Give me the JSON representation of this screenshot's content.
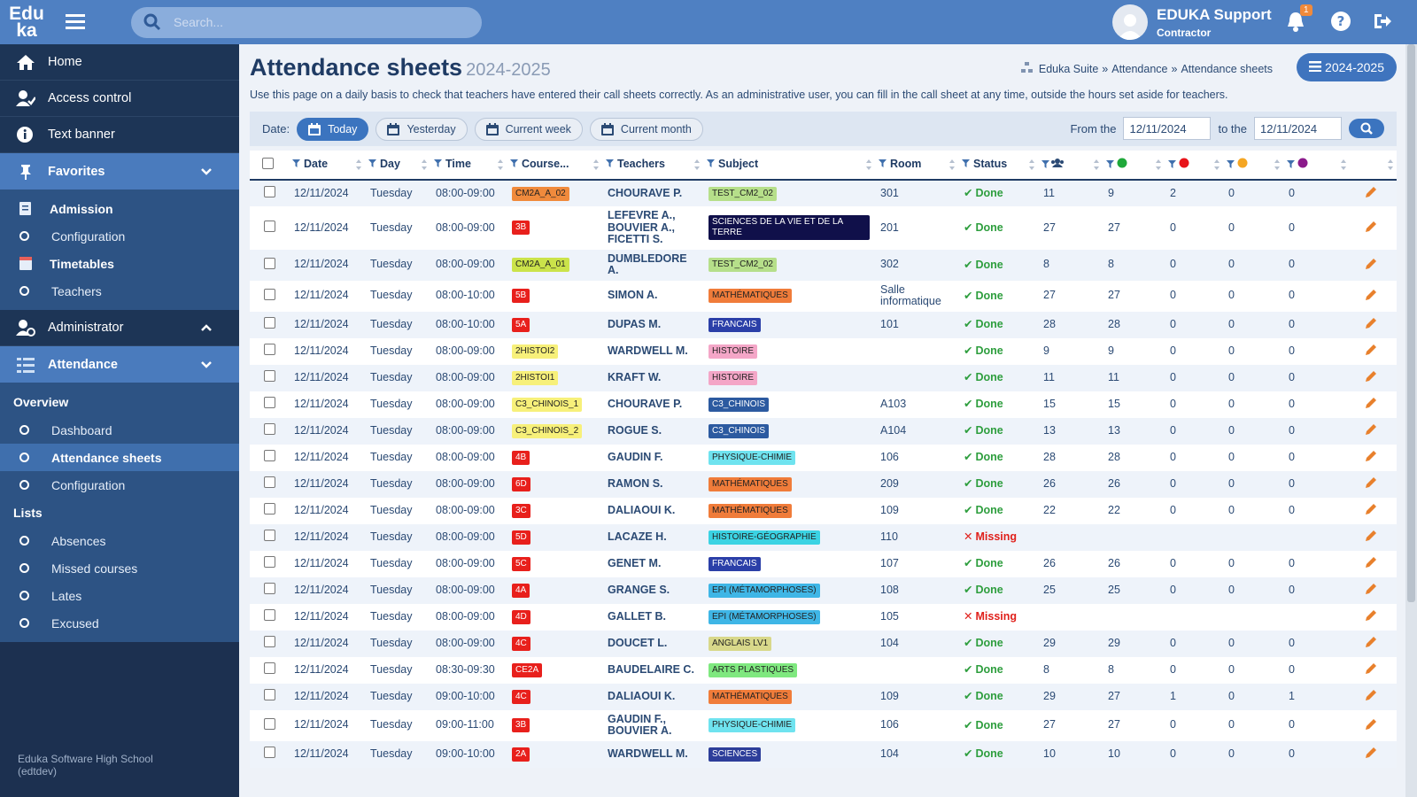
{
  "header": {
    "logo_top": "Edu",
    "logo_bottom": "ka",
    "search_placeholder": "Search...",
    "user_name": "EDUKA Support",
    "user_role": "Contractor",
    "notification_count": 1
  },
  "sidebar": {
    "home": "Home",
    "access_control": "Access control",
    "text_banner": "Text banner",
    "favorites": "Favorites",
    "admission": "Admission",
    "admission_configuration": "Configuration",
    "timetables": "Timetables",
    "teachers": "Teachers",
    "administrator": "Administrator",
    "attendance": "Attendance",
    "overview": "Overview",
    "dashboard": "Dashboard",
    "attendance_sheets": "Attendance sheets",
    "attendance_configuration": "Configuration",
    "lists": "Lists",
    "absences": "Absences",
    "missed_courses": "Missed courses",
    "lates": "Lates",
    "excused": "Excused",
    "footer": "Eduka Software High School (edtdev)"
  },
  "page": {
    "title": "Attendance sheets",
    "year": "2024-2025",
    "breadcrumb": [
      "Eduka Suite",
      "Attendance",
      "Attendance sheets"
    ],
    "breadcrumb_separator": "»",
    "year_button": "2024-2025",
    "description": "Use this page on a daily basis to check that teachers have entered their call sheets correctly. As an administrative user, you can fill in the call sheet at any time, outside the hours set aside for teachers."
  },
  "filters": {
    "date_label": "Date:",
    "buttons": [
      "Today",
      "Yesterday",
      "Current week",
      "Current month"
    ],
    "active_button": 0,
    "from_label": "From the",
    "from_value": "12/11/2024",
    "to_label": "to the",
    "to_value": "12/11/2024"
  },
  "table": {
    "columns": [
      "Date",
      "Day",
      "Time",
      "Course...",
      "Teachers",
      "Subject",
      "Room",
      "Status"
    ],
    "dot_colors": [
      "#1fa83a",
      "#e8141a",
      "#f5a623",
      "#8b1a8b"
    ],
    "rows": [
      {
        "date": "12/11/2024",
        "day": "Tuesday",
        "time": "08:00-09:00",
        "course": "CM2A_A_02",
        "course_color": "#f08a3c",
        "teachers": "CHOURAVE P.",
        "subject": "TEST_CM2_02",
        "subject_color": "#b6df8a",
        "room": "301",
        "status": "Done",
        "status_icon": "✔",
        "status_color": "#2e9e3e",
        "total": 11,
        "present": 9,
        "absent": 2,
        "late": 0,
        "excused": 0
      },
      {
        "date": "12/11/2024",
        "day": "Tuesday",
        "time": "08:00-09:00",
        "course": "3B",
        "course_color": "#e8201c",
        "teachers": "LEFEVRE A., BOUVIER A., FICETTI S.",
        "subject": "SCIENCES DE LA VIE ET DE LA TERRE",
        "subject_color": "#10104a",
        "room": "201",
        "status": "Done",
        "status_icon": "✔",
        "status_color": "#2e9e3e",
        "total": 27,
        "present": 27,
        "absent": 0,
        "late": 0,
        "excused": 0
      },
      {
        "date": "12/11/2024",
        "day": "Tuesday",
        "time": "08:00-09:00",
        "course": "CM2A_A_01",
        "course_color": "#cbe34a",
        "teachers": "DUMBLEDORE A.",
        "subject": "TEST_CM2_02",
        "subject_color": "#b6df8a",
        "room": "302",
        "status": "Done",
        "status_icon": "✔",
        "status_color": "#2e9e3e",
        "total": 8,
        "present": 8,
        "absent": 0,
        "late": 0,
        "excused": 0
      },
      {
        "date": "12/11/2024",
        "day": "Tuesday",
        "time": "08:00-10:00",
        "course": "5B",
        "course_color": "#e8201c",
        "teachers": "SIMON A.",
        "subject": "MATHÉMATIQUES",
        "subject_color": "#f07c3a",
        "room": "Salle informatique",
        "status": "Done",
        "status_icon": "✔",
        "status_color": "#2e9e3e",
        "total": 27,
        "present": 27,
        "absent": 0,
        "late": 0,
        "excused": 0
      },
      {
        "date": "12/11/2024",
        "day": "Tuesday",
        "time": "08:00-10:00",
        "course": "5A",
        "course_color": "#e8201c",
        "teachers": "DUPAS M.",
        "subject": "FRANCAIS",
        "subject_color": "#2b3fa8",
        "room": "101",
        "status": "Done",
        "status_icon": "✔",
        "status_color": "#2e9e3e",
        "total": 28,
        "present": 28,
        "absent": 0,
        "late": 0,
        "excused": 0
      },
      {
        "date": "12/11/2024",
        "day": "Tuesday",
        "time": "08:00-09:00",
        "course": "2HISTOI2",
        "course_color": "#f7f07a",
        "teachers": "WARDWELL M.",
        "subject": "HISTOIRE",
        "subject_color": "#f4a6c7",
        "room": null,
        "status": "Done",
        "status_icon": "✔",
        "status_color": "#2e9e3e",
        "total": 9,
        "present": 9,
        "absent": 0,
        "late": 0,
        "excused": 0
      },
      {
        "date": "12/11/2024",
        "day": "Tuesday",
        "time": "08:00-09:00",
        "course": "2HISTOI1",
        "course_color": "#f7f07a",
        "teachers": "KRAFT W.",
        "subject": "HISTOIRE",
        "subject_color": "#f4a6c7",
        "room": null,
        "status": "Done",
        "status_icon": "✔",
        "status_color": "#2e9e3e",
        "total": 11,
        "present": 11,
        "absent": 0,
        "late": 0,
        "excused": 0
      },
      {
        "date": "12/11/2024",
        "day": "Tuesday",
        "time": "08:00-09:00",
        "course": "C3_CHINOIS_1",
        "course_color": "#f7f07a",
        "teachers": "CHOURAVE P.",
        "subject": "C3_CHINOIS",
        "subject_color": "#2c5aa0",
        "room": "A103",
        "status": "Done",
        "status_icon": "✔",
        "status_color": "#2e9e3e",
        "total": 15,
        "present": 15,
        "absent": 0,
        "late": 0,
        "excused": 0
      },
      {
        "date": "12/11/2024",
        "day": "Tuesday",
        "time": "08:00-09:00",
        "course": "C3_CHINOIS_2",
        "course_color": "#f7f07a",
        "teachers": "ROGUE S.",
        "subject": "C3_CHINOIS",
        "subject_color": "#2c5aa0",
        "room": "A104",
        "status": "Done",
        "status_icon": "✔",
        "status_color": "#2e9e3e",
        "total": 13,
        "present": 13,
        "absent": 0,
        "late": 0,
        "excused": 0
      },
      {
        "date": "12/11/2024",
        "day": "Tuesday",
        "time": "08:00-09:00",
        "course": "4B",
        "course_color": "#e8201c",
        "teachers": "GAUDIN F.",
        "subject": "PHYSIQUE-CHIMIE",
        "subject_color": "#6fe3ef",
        "room": "106",
        "status": "Done",
        "status_icon": "✔",
        "status_color": "#2e9e3e",
        "total": 28,
        "present": 28,
        "absent": 0,
        "late": 0,
        "excused": 0
      },
      {
        "date": "12/11/2024",
        "day": "Tuesday",
        "time": "08:00-09:00",
        "course": "6D",
        "course_color": "#e8201c",
        "teachers": "RAMON S.",
        "subject": "MATHÉMATIQUES",
        "subject_color": "#f07c3a",
        "room": "209",
        "status": "Done",
        "status_icon": "✔",
        "status_color": "#2e9e3e",
        "total": 26,
        "present": 26,
        "absent": 0,
        "late": 0,
        "excused": 0
      },
      {
        "date": "12/11/2024",
        "day": "Tuesday",
        "time": "08:00-09:00",
        "course": "3C",
        "course_color": "#e8201c",
        "teachers": "DALIAOUI K.",
        "subject": "MATHÉMATIQUES",
        "subject_color": "#f07c3a",
        "room": "109",
        "status": "Done",
        "status_icon": "✔",
        "status_color": "#2e9e3e",
        "total": 22,
        "present": 22,
        "absent": 0,
        "late": 0,
        "excused": 0
      },
      {
        "date": "12/11/2024",
        "day": "Tuesday",
        "time": "08:00-09:00",
        "course": "5D",
        "course_color": "#e8201c",
        "teachers": "LACAZE H.",
        "subject": "HISTOIRE-GÉOGRAPHIE",
        "subject_color": "#3bd3e3",
        "room": "110",
        "status": "Missing",
        "status_icon": "✕",
        "status_color": "#e0201b",
        "total": null,
        "present": null,
        "absent": null,
        "late": null,
        "excused": null
      },
      {
        "date": "12/11/2024",
        "day": "Tuesday",
        "time": "08:00-09:00",
        "course": "5C",
        "course_color": "#e8201c",
        "teachers": "GENET M.",
        "subject": "FRANCAIS",
        "subject_color": "#2b3fa8",
        "room": "107",
        "status": "Done",
        "status_icon": "✔",
        "status_color": "#2e9e3e",
        "total": 26,
        "present": 26,
        "absent": 0,
        "late": 0,
        "excused": 0
      },
      {
        "date": "12/11/2024",
        "day": "Tuesday",
        "time": "08:00-09:00",
        "course": "4A",
        "course_color": "#e8201c",
        "teachers": "GRANGE S.",
        "subject": "EPI (MÉTAMORPHOSES)",
        "subject_color": "#3fb6e6",
        "room": "108",
        "status": "Done",
        "status_icon": "✔",
        "status_color": "#2e9e3e",
        "total": 25,
        "present": 25,
        "absent": 0,
        "late": 0,
        "excused": 0
      },
      {
        "date": "12/11/2024",
        "day": "Tuesday",
        "time": "08:00-09:00",
        "course": "4D",
        "course_color": "#e8201c",
        "teachers": "GALLET B.",
        "subject": "EPI (MÉTAMORPHOSES)",
        "subject_color": "#3fb6e6",
        "room": "105",
        "status": "Missing",
        "status_icon": "✕",
        "status_color": "#e0201b",
        "total": null,
        "present": null,
        "absent": null,
        "late": null,
        "excused": null
      },
      {
        "date": "12/11/2024",
        "day": "Tuesday",
        "time": "08:00-09:00",
        "course": "4C",
        "course_color": "#e8201c",
        "teachers": "DOUCET L.",
        "subject": "ANGLAIS LV1",
        "subject_color": "#d8d88a",
        "room": "104",
        "status": "Done",
        "status_icon": "✔",
        "status_color": "#2e9e3e",
        "total": 29,
        "present": 29,
        "absent": 0,
        "late": 0,
        "excused": 0
      },
      {
        "date": "12/11/2024",
        "day": "Tuesday",
        "time": "08:30-09:30",
        "course": "CE2A",
        "course_color": "#e8201c",
        "teachers": "BAUDELAIRE C.",
        "subject": "ARTS PLASTIQUES",
        "subject_color": "#7fe87f",
        "room": null,
        "status": "Done",
        "status_icon": "✔",
        "status_color": "#2e9e3e",
        "total": 8,
        "present": 8,
        "absent": 0,
        "late": 0,
        "excused": 0
      },
      {
        "date": "12/11/2024",
        "day": "Tuesday",
        "time": "09:00-10:00",
        "course": "4C",
        "course_color": "#e8201c",
        "teachers": "DALIAOUI K.",
        "subject": "MATHÉMATIQUES",
        "subject_color": "#f07c3a",
        "room": "109",
        "status": "Done",
        "status_icon": "✔",
        "status_color": "#2e9e3e",
        "total": 29,
        "present": 27,
        "absent": 1,
        "late": 0,
        "excused": 1
      },
      {
        "date": "12/11/2024",
        "day": "Tuesday",
        "time": "09:00-11:00",
        "course": "3B",
        "course_color": "#e8201c",
        "teachers": "GAUDIN F., BOUVIER A.",
        "subject": "PHYSIQUE-CHIMIE",
        "subject_color": "#6fe3ef",
        "room": "106",
        "status": "Done",
        "status_icon": "✔",
        "status_color": "#2e9e3e",
        "total": 27,
        "present": 27,
        "absent": 0,
        "late": 0,
        "excused": 0
      },
      {
        "date": "12/11/2024",
        "day": "Tuesday",
        "time": "09:00-10:00",
        "course": "2A",
        "course_color": "#e8201c",
        "teachers": "WARDWELL M.",
        "subject": "SCIENCES",
        "subject_color": "#2d3e9a",
        "room": "104",
        "status": "Done",
        "status_icon": "✔",
        "status_color": "#2e9e3e",
        "total": 10,
        "present": 10,
        "absent": 0,
        "late": 0,
        "excused": 0
      }
    ]
  }
}
